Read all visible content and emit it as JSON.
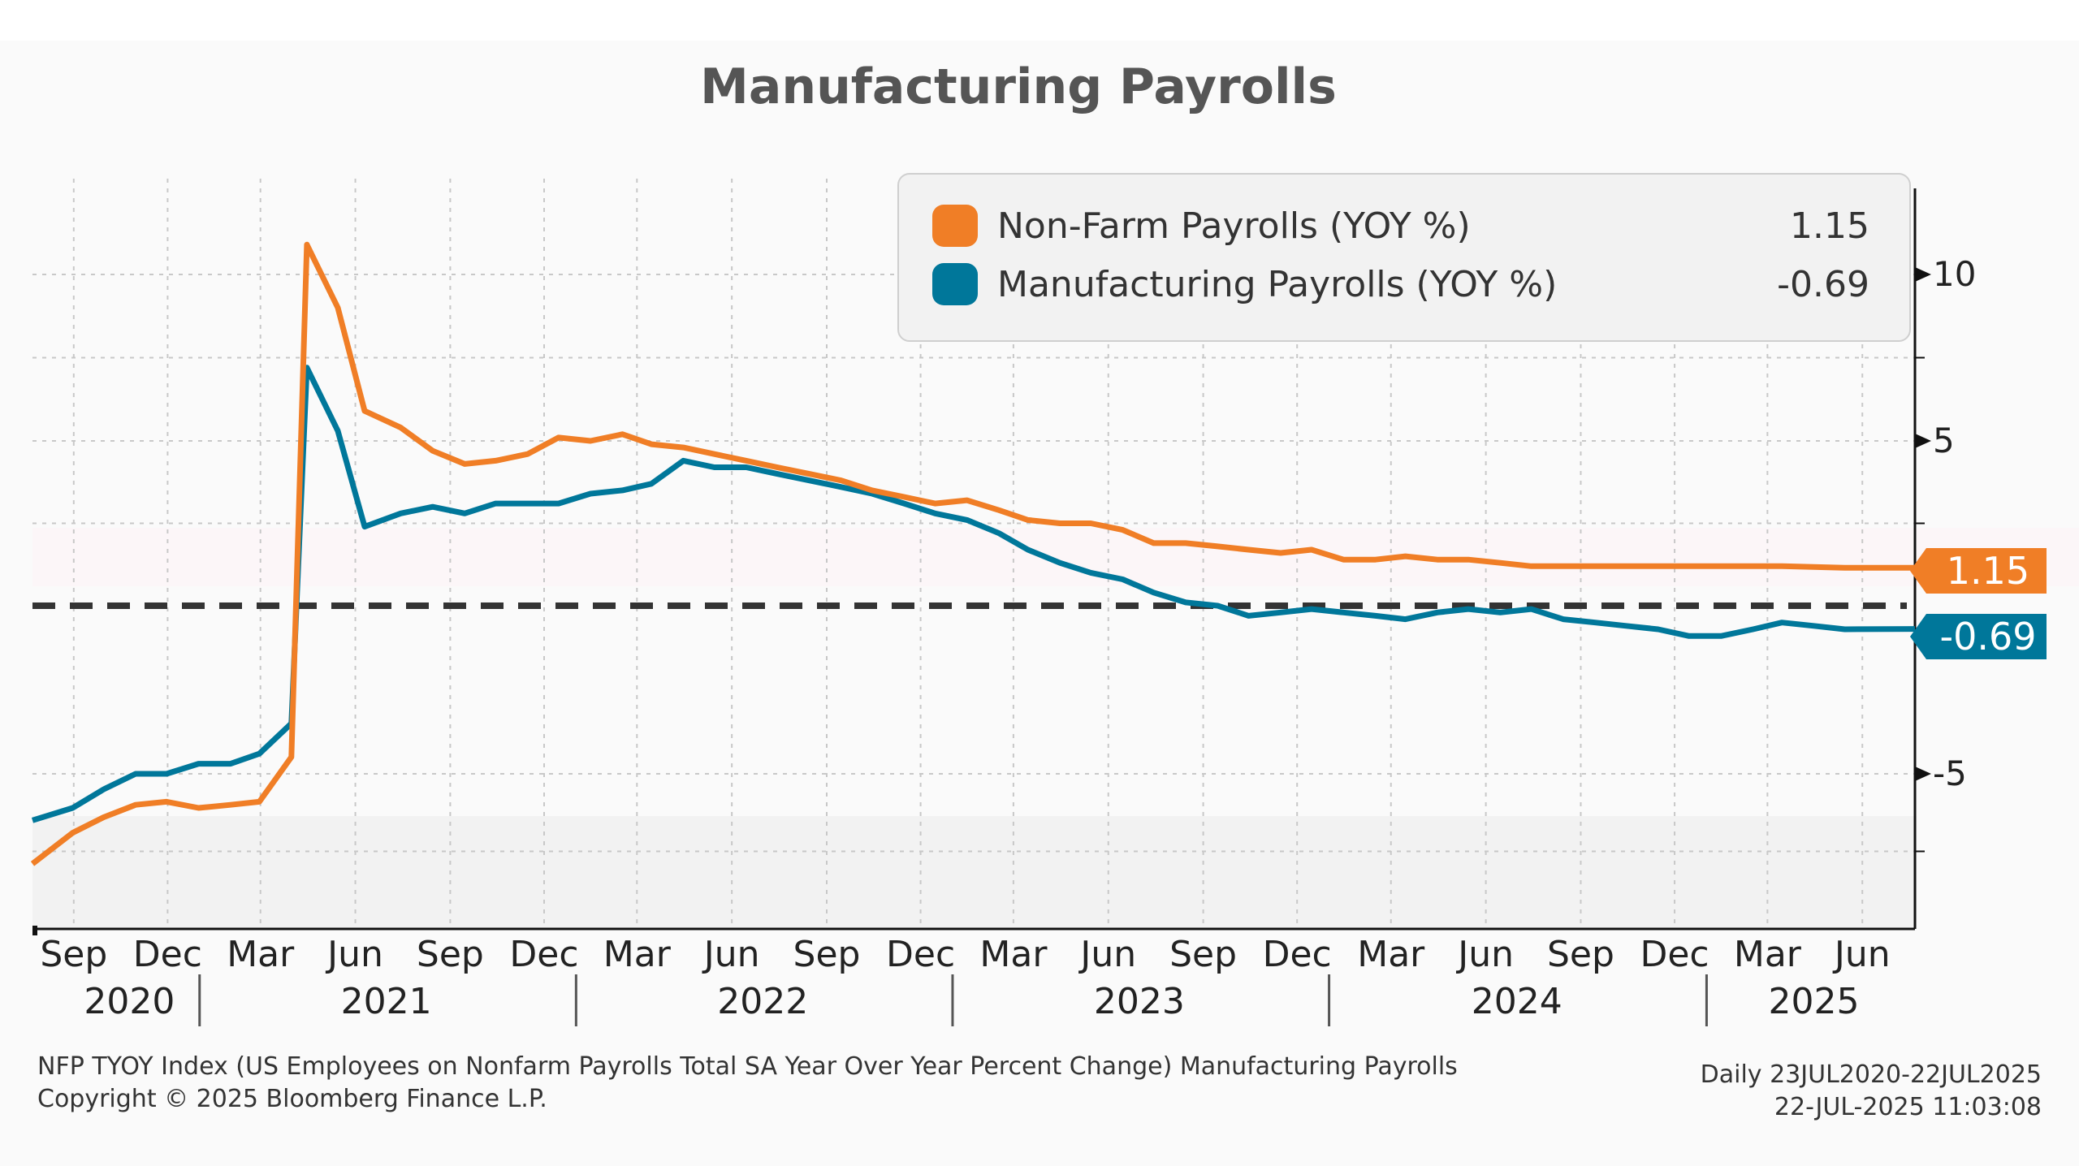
{
  "title": "Manufacturing Payrolls",
  "colors": {
    "nfp": "#f07e26",
    "mfg": "#00779a",
    "zero_line": "#333333",
    "background": "#fafafa"
  },
  "legend": [
    {
      "label": "Non-Farm Payrolls (YOY %)",
      "value": "1.15"
    },
    {
      "label": "Manufacturing Payrolls (YOY %)",
      "value": "-0.69"
    }
  ],
  "chart_data": {
    "type": "line",
    "title": "Manufacturing Payrolls",
    "x_range": [
      "2020-07-23",
      "2025-07-22"
    ],
    "ylim": [
      -10,
      12.5
    ],
    "y_ticks": [
      -5,
      5,
      10
    ],
    "grid": true,
    "legend_position": "top-right",
    "reference_line": 0,
    "x_month_labels": [
      "Sep",
      "Dec",
      "Mar",
      "Jun",
      "Sep",
      "Dec",
      "Mar",
      "Jun",
      "Sep",
      "Dec",
      "Mar",
      "Jun",
      "Sep",
      "Dec",
      "Mar",
      "Jun",
      "Sep",
      "Dec",
      "Mar",
      "Jun"
    ],
    "x_year_labels": [
      "2020",
      "2021",
      "2022",
      "2023",
      "2024",
      "2025"
    ],
    "series": [
      {
        "name": "Non-Farm Payrolls (YOY %)",
        "last_value": "1.15",
        "points": [
          [
            "2020-07-23",
            -7.9
          ],
          [
            "2020-08-31",
            -6.9
          ],
          [
            "2020-09-30",
            -6.4
          ],
          [
            "2020-10-31",
            -6.0
          ],
          [
            "2020-11-30",
            -5.9
          ],
          [
            "2020-12-31",
            -6.1
          ],
          [
            "2021-01-31",
            -6.0
          ],
          [
            "2021-02-28",
            -5.9
          ],
          [
            "2021-03-31",
            -4.5
          ],
          [
            "2021-04-15",
            10.9
          ],
          [
            "2021-05-15",
            9.0
          ],
          [
            "2021-06-10",
            5.9
          ],
          [
            "2021-07-15",
            5.4
          ],
          [
            "2021-08-15",
            4.7
          ],
          [
            "2021-09-15",
            4.3
          ],
          [
            "2021-10-15",
            4.4
          ],
          [
            "2021-11-15",
            4.6
          ],
          [
            "2021-12-15",
            5.1
          ],
          [
            "2022-01-15",
            5.0
          ],
          [
            "2022-02-15",
            5.2
          ],
          [
            "2022-03-15",
            4.9
          ],
          [
            "2022-04-15",
            4.8
          ],
          [
            "2022-05-15",
            4.6
          ],
          [
            "2022-06-15",
            4.4
          ],
          [
            "2022-07-15",
            4.2
          ],
          [
            "2022-08-15",
            4.0
          ],
          [
            "2022-09-15",
            3.8
          ],
          [
            "2022-10-15",
            3.5
          ],
          [
            "2022-11-15",
            3.3
          ],
          [
            "2022-12-15",
            3.1
          ],
          [
            "2023-01-15",
            3.2
          ],
          [
            "2023-02-15",
            2.9
          ],
          [
            "2023-03-15",
            2.6
          ],
          [
            "2023-04-15",
            2.5
          ],
          [
            "2023-05-15",
            2.5
          ],
          [
            "2023-06-15",
            2.3
          ],
          [
            "2023-07-15",
            1.9
          ],
          [
            "2023-08-15",
            1.9
          ],
          [
            "2023-09-15",
            1.8
          ],
          [
            "2023-10-15",
            1.7
          ],
          [
            "2023-11-15",
            1.6
          ],
          [
            "2023-12-15",
            1.7
          ],
          [
            "2024-01-15",
            1.4
          ],
          [
            "2024-02-15",
            1.4
          ],
          [
            "2024-03-15",
            1.5
          ],
          [
            "2024-04-15",
            1.4
          ],
          [
            "2024-05-15",
            1.4
          ],
          [
            "2024-06-15",
            1.3
          ],
          [
            "2024-07-15",
            1.2
          ],
          [
            "2024-09-15",
            1.2
          ],
          [
            "2024-11-15",
            1.2
          ],
          [
            "2025-01-15",
            1.2
          ],
          [
            "2025-03-15",
            1.2
          ],
          [
            "2025-05-15",
            1.15
          ],
          [
            "2025-07-22",
            1.15
          ]
        ]
      },
      {
        "name": "Manufacturing Payrolls (YOY %)",
        "last_value": "-0.69",
        "points": [
          [
            "2020-07-23",
            -6.5
          ],
          [
            "2020-08-31",
            -6.1
          ],
          [
            "2020-09-30",
            -5.5
          ],
          [
            "2020-10-31",
            -5.0
          ],
          [
            "2020-11-30",
            -5.0
          ],
          [
            "2020-12-31",
            -4.7
          ],
          [
            "2021-01-31",
            -4.7
          ],
          [
            "2021-02-28",
            -4.4
          ],
          [
            "2021-03-31",
            -3.5
          ],
          [
            "2021-04-15",
            7.2
          ],
          [
            "2021-05-15",
            5.3
          ],
          [
            "2021-06-10",
            2.4
          ],
          [
            "2021-07-15",
            2.8
          ],
          [
            "2021-08-15",
            3.0
          ],
          [
            "2021-09-15",
            2.8
          ],
          [
            "2021-10-15",
            3.1
          ],
          [
            "2021-11-15",
            3.1
          ],
          [
            "2021-12-15",
            3.1
          ],
          [
            "2022-01-15",
            3.4
          ],
          [
            "2022-02-15",
            3.5
          ],
          [
            "2022-03-15",
            3.7
          ],
          [
            "2022-04-15",
            4.4
          ],
          [
            "2022-05-15",
            4.2
          ],
          [
            "2022-06-15",
            4.2
          ],
          [
            "2022-07-15",
            4.0
          ],
          [
            "2022-08-15",
            3.8
          ],
          [
            "2022-09-15",
            3.6
          ],
          [
            "2022-10-15",
            3.4
          ],
          [
            "2022-11-15",
            3.1
          ],
          [
            "2022-12-15",
            2.8
          ],
          [
            "2023-01-15",
            2.6
          ],
          [
            "2023-02-15",
            2.2
          ],
          [
            "2023-03-15",
            1.7
          ],
          [
            "2023-04-15",
            1.3
          ],
          [
            "2023-05-15",
            1.0
          ],
          [
            "2023-06-15",
            0.8
          ],
          [
            "2023-07-15",
            0.4
          ],
          [
            "2023-08-15",
            0.1
          ],
          [
            "2023-09-15",
            0.0
          ],
          [
            "2023-10-15",
            -0.3
          ],
          [
            "2023-11-15",
            -0.2
          ],
          [
            "2023-12-15",
            -0.1
          ],
          [
            "2024-01-15",
            -0.2
          ],
          [
            "2024-02-15",
            -0.3
          ],
          [
            "2024-03-15",
            -0.4
          ],
          [
            "2024-04-15",
            -0.2
          ],
          [
            "2024-05-15",
            -0.1
          ],
          [
            "2024-06-15",
            -0.2
          ],
          [
            "2024-07-15",
            -0.1
          ],
          [
            "2024-08-15",
            -0.4
          ],
          [
            "2024-09-15",
            -0.5
          ],
          [
            "2024-10-15",
            -0.6
          ],
          [
            "2024-11-15",
            -0.7
          ],
          [
            "2024-12-15",
            -0.9
          ],
          [
            "2025-01-15",
            -0.9
          ],
          [
            "2025-02-15",
            -0.7
          ],
          [
            "2025-03-15",
            -0.5
          ],
          [
            "2025-04-15",
            -0.6
          ],
          [
            "2025-05-15",
            -0.7
          ],
          [
            "2025-07-22",
            -0.69
          ]
        ]
      }
    ]
  },
  "footer": {
    "description": "NFP TYOY Index (US Employees on Nonfarm Payrolls Total SA Year Over Year Percent Change) Manufacturing Payrolls",
    "copyright": "Copyright © 2025 Bloomberg Finance L.P.",
    "frequency_range": "Daily 23JUL2020-22JUL2025",
    "timestamp": "22-JUL-2025 11:03:08"
  }
}
